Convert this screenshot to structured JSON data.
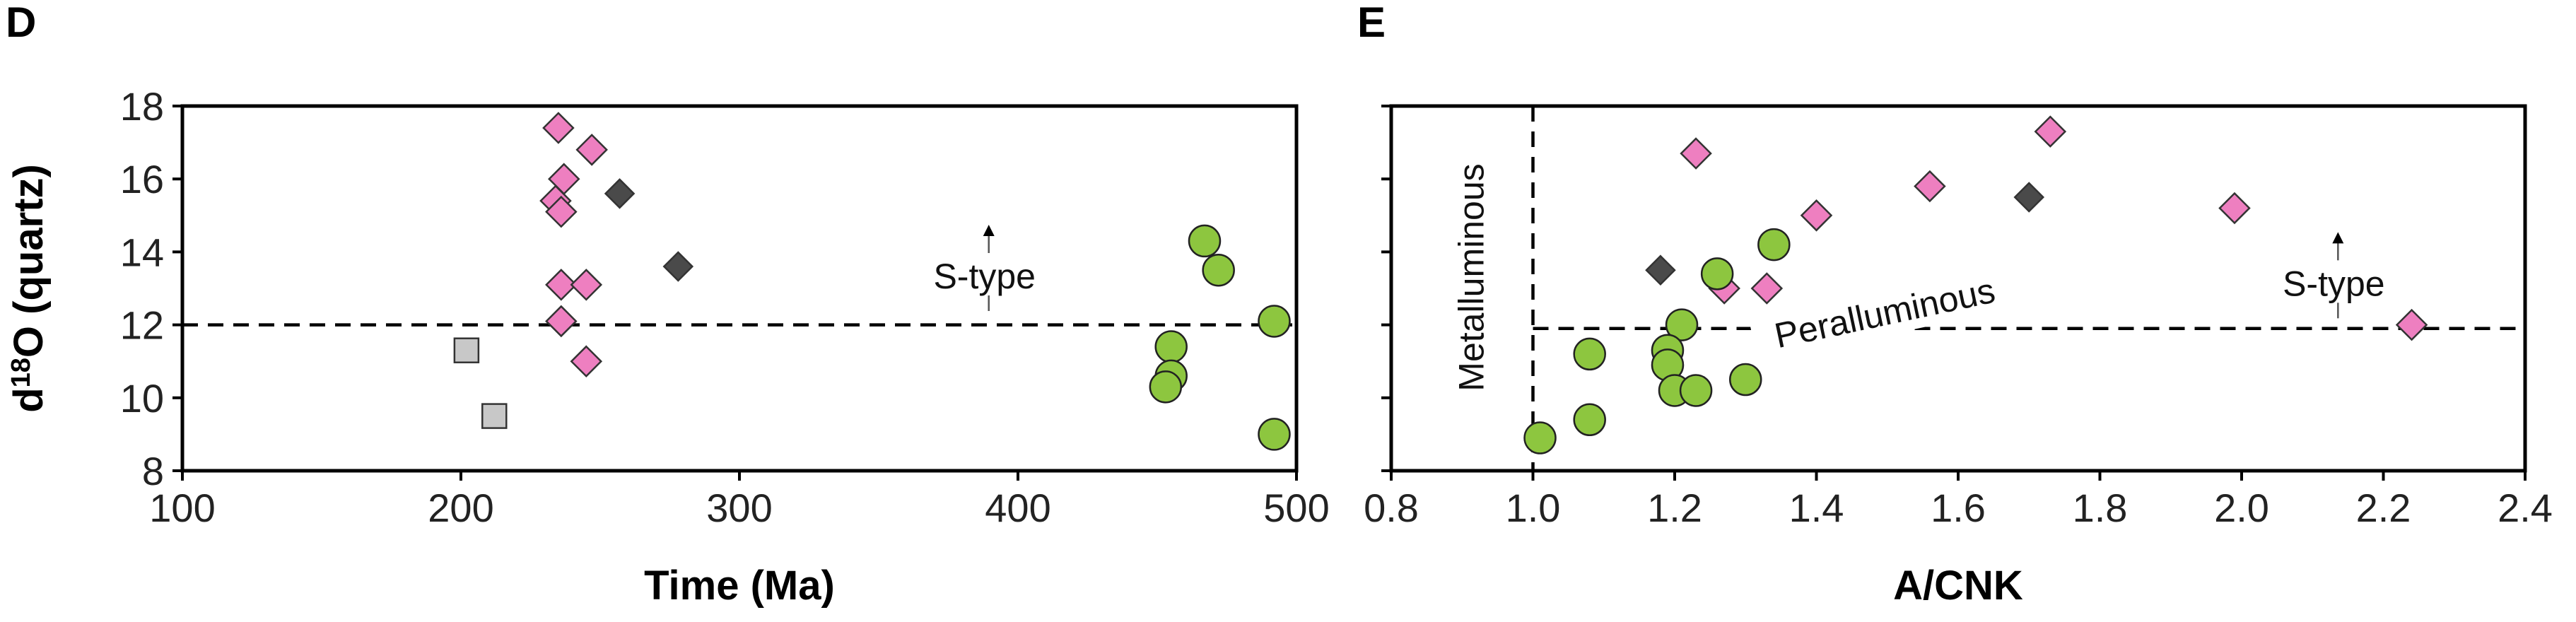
{
  "chart_data": [
    {
      "type": "scatter",
      "panel": "D",
      "xlabel": "Time (Ma)",
      "ylabel": "d18O (quartz)",
      "ylabel_main": "d",
      "ylabel_sup": "18",
      "ylabel_rest": "O (quartz)",
      "xlim": [
        100,
        500
      ],
      "ylim": [
        8,
        18
      ],
      "xticks": [
        100,
        200,
        300,
        400,
        500
      ],
      "yticks": [
        8,
        10,
        12,
        14,
        16,
        18
      ],
      "reference_lines": [
        {
          "orientation": "horizontal",
          "value": 12,
          "style": "dashed"
        }
      ],
      "annotations": [
        {
          "text": "S-type",
          "x": 388,
          "y": 13.0
        }
      ],
      "series": [
        {
          "name": "pink diamonds",
          "marker": "diamond",
          "color": "#ee7fc0",
          "points": [
            [
              235,
              17.4
            ],
            [
              247,
              16.8
            ],
            [
              237,
              16.0
            ],
            [
              234,
              15.4
            ],
            [
              236,
              15.1
            ],
            [
              236,
              13.1
            ],
            [
              245,
              13.1
            ],
            [
              236,
              12.1
            ],
            [
              245,
              11.0
            ]
          ]
        },
        {
          "name": "dark diamonds",
          "marker": "diamond",
          "color": "#4a4a4a",
          "points": [
            [
              257,
              15.6
            ],
            [
              278,
              13.6
            ]
          ]
        },
        {
          "name": "grey squares",
          "marker": "square",
          "color": "#c8c8c8",
          "points": [
            [
              202,
              11.3
            ],
            [
              212,
              9.5
            ]
          ]
        },
        {
          "name": "green circles",
          "marker": "circle",
          "color": "#8dc63f",
          "points": [
            [
              467,
              14.3
            ],
            [
              472,
              13.5
            ],
            [
              492,
              12.1
            ],
            [
              455,
              11.4
            ],
            [
              455,
              10.6
            ],
            [
              453,
              10.3
            ],
            [
              492,
              9.0
            ]
          ]
        }
      ]
    },
    {
      "type": "scatter",
      "panel": "E",
      "xlabel": "A/CNK",
      "ylabel": "",
      "xlim": [
        0.8,
        2.4
      ],
      "ylim": [
        8,
        18
      ],
      "xticks": [
        0.8,
        1.0,
        1.2,
        1.4,
        1.6,
        1.8,
        2.0,
        2.2,
        2.4
      ],
      "xtick_labels": [
        "0.8",
        "1.0",
        "1.2",
        "1.4",
        "1.6",
        "1.8",
        "2.0",
        "2.2",
        "2.4"
      ],
      "yticks": [
        8,
        10,
        12,
        14,
        16,
        18
      ],
      "reference_lines": [
        {
          "orientation": "vertical",
          "value": 1.0,
          "style": "dashed"
        },
        {
          "orientation": "horizontal",
          "value": 11.9,
          "style": "dashed"
        }
      ],
      "annotations": [
        {
          "text": "Metalluminous",
          "x": 0.93,
          "y": 13.3,
          "rotation": -90
        },
        {
          "text": "Peralluminous",
          "x": 1.5,
          "y": 12.0,
          "rotation": -12
        },
        {
          "text": "S-type",
          "x": 2.13,
          "y": 12.8
        }
      ],
      "series": [
        {
          "name": "pink diamonds",
          "marker": "diamond",
          "color": "#ee7fc0",
          "points": [
            [
              1.73,
              17.3
            ],
            [
              1.23,
              16.7
            ],
            [
              1.56,
              15.8
            ],
            [
              1.99,
              15.2
            ],
            [
              1.4,
              15.0
            ],
            [
              1.27,
              13.0
            ],
            [
              1.33,
              13.0
            ],
            [
              2.24,
              12.0
            ]
          ]
        },
        {
          "name": "dark diamonds",
          "marker": "diamond",
          "color": "#4a4a4a",
          "points": [
            [
              1.7,
              15.5
            ],
            [
              1.18,
              13.5
            ]
          ]
        },
        {
          "name": "green circles",
          "marker": "circle",
          "color": "#8dc63f",
          "points": [
            [
              1.34,
              14.2
            ],
            [
              1.26,
              13.4
            ],
            [
              1.21,
              12.0
            ],
            [
              1.19,
              11.3
            ],
            [
              1.08,
              11.2
            ],
            [
              1.19,
              10.9
            ],
            [
              1.3,
              10.5
            ],
            [
              1.2,
              10.2
            ],
            [
              1.23,
              10.2
            ],
            [
              1.08,
              9.4
            ],
            [
              1.01,
              8.9
            ]
          ]
        }
      ]
    }
  ]
}
